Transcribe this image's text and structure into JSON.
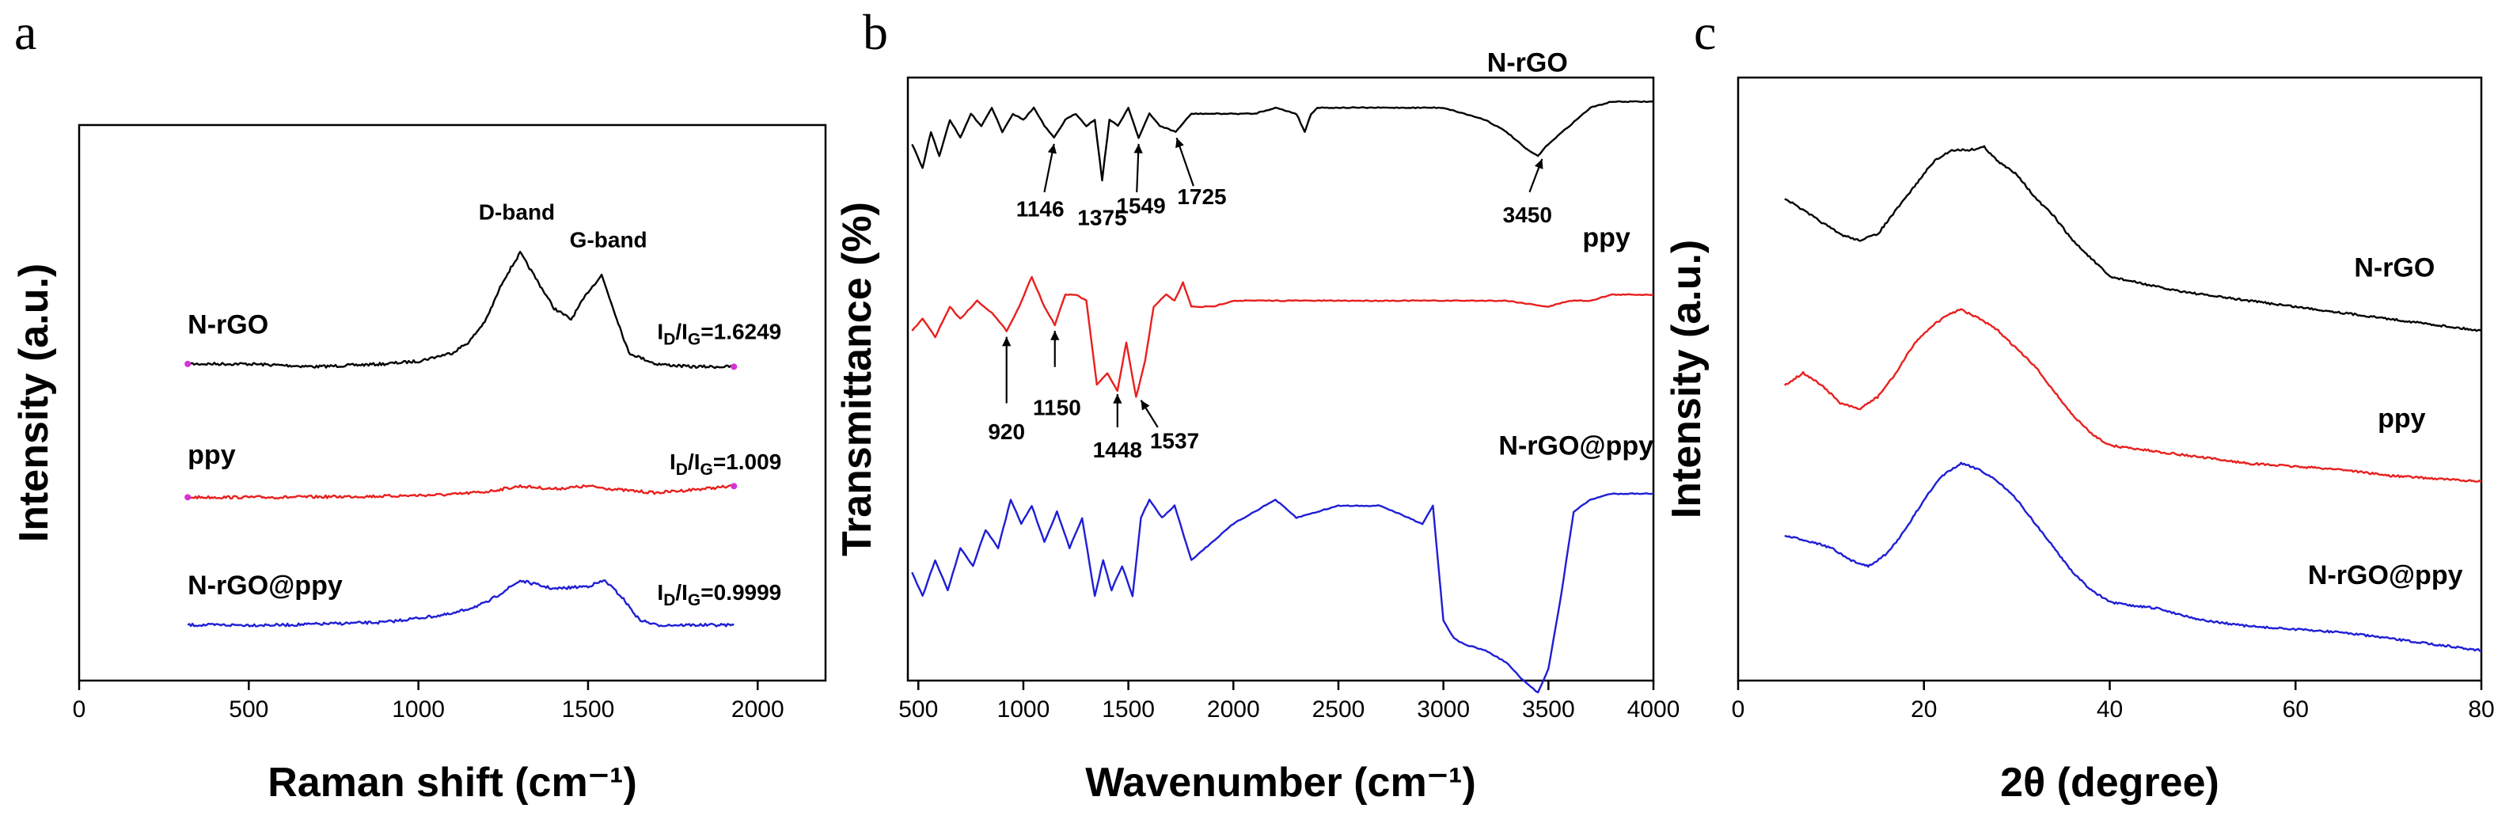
{
  "chart_data": [
    {
      "panel": "a",
      "type": "line",
      "xlabel": "Raman shift (cm⁻¹)",
      "ylabel": "Intensity (a.u.)",
      "xlim": [
        0,
        2200
      ],
      "ylim": [
        0,
        100
      ],
      "xticks": [
        0,
        500,
        1000,
        1500,
        2000
      ],
      "annotations": [
        {
          "text": "D-band",
          "x": 1290,
          "y": 83
        },
        {
          "text": "G-band",
          "x": 1560,
          "y": 78
        }
      ],
      "series": [
        {
          "name": "N-rGO",
          "color": "#000000",
          "ratio_label": "I_D/I_G=1.6249",
          "x": [
            320,
            500,
            700,
            900,
            1000,
            1100,
            1150,
            1200,
            1250,
            1300,
            1350,
            1400,
            1450,
            1500,
            1540,
            1580,
            1620,
            1700,
            1800,
            1930
          ],
          "y": [
            57,
            57,
            56.5,
            57,
            57.5,
            59,
            61,
            65,
            72,
            77,
            72,
            67,
            65,
            70,
            73,
            66,
            59,
            57,
            56.5,
            56.5
          ]
        },
        {
          "name": "ppy",
          "color": "#e8201e",
          "ratio_label": "I_D/I_G=1.009",
          "x": [
            320,
            600,
            900,
            1100,
            1200,
            1300,
            1400,
            1500,
            1600,
            1700,
            1930
          ],
          "y": [
            33,
            33,
            33.2,
            33.5,
            34,
            35,
            34.5,
            35,
            34.3,
            33.8,
            35
          ]
        },
        {
          "name": "N-rGO@ppy",
          "color": "#1f1ed6",
          "ratio_label": "I_D/I_G=0.9999",
          "x": [
            320,
            600,
            900,
            1100,
            1200,
            1300,
            1400,
            1500,
            1550,
            1600,
            1650,
            1700,
            1930
          ],
          "y": [
            10,
            10,
            10.5,
            12,
            14,
            18,
            16.5,
            17,
            18,
            15,
            11,
            10,
            10
          ]
        }
      ]
    },
    {
      "panel": "b",
      "type": "line",
      "xlabel": "Wavenumber (cm⁻¹)",
      "ylabel": "Transmittance (%)",
      "xlim": [
        450,
        4000
      ],
      "ylim": [
        0,
        100
      ],
      "xticks": [
        500,
        1000,
        1500,
        2000,
        2500,
        3000,
        3500,
        4000
      ],
      "series": [
        {
          "name": "N-rGO",
          "color": "#000000",
          "peaks": [
            {
              "text": "1146",
              "x": 1146
            },
            {
              "text": "1375",
              "x": 1375
            },
            {
              "text": "1549",
              "x": 1549
            },
            {
              "text": "1725",
              "x": 1725
            },
            {
              "text": "3450",
              "x": 3450
            }
          ],
          "x": [
            470,
            520,
            560,
            600,
            650,
            700,
            750,
            800,
            850,
            900,
            950,
            1000,
            1050,
            1100,
            1146,
            1200,
            1250,
            1300,
            1340,
            1375,
            1410,
            1450,
            1500,
            1549,
            1600,
            1650,
            1725,
            1800,
            1900,
            2000,
            2100,
            2200,
            2300,
            2340,
            2370,
            2400,
            2500,
            2700,
            2900,
            3000,
            3100,
            3200,
            3300,
            3400,
            3450,
            3500,
            3600,
            3700,
            3800,
            3900,
            4000
          ],
          "y": [
            89,
            85,
            91,
            87,
            93,
            90,
            94,
            92,
            95,
            91,
            94,
            93,
            95,
            92,
            90,
            93,
            94,
            92,
            93,
            83,
            93,
            92,
            95,
            90,
            94,
            92,
            91,
            94,
            94,
            94,
            94,
            95,
            94,
            91,
            94,
            95,
            95,
            95,
            95,
            95,
            94,
            93,
            91,
            88,
            87,
            89,
            92,
            95,
            96,
            96,
            96
          ]
        },
        {
          "name": "ppy",
          "color": "#e8201e",
          "peaks": [
            {
              "text": "920",
              "x": 920
            },
            {
              "text": "1150",
              "x": 1150
            },
            {
              "text": "1448",
              "x": 1448
            },
            {
              "text": "1537",
              "x": 1537
            }
          ],
          "x": [
            470,
            520,
            580,
            650,
            700,
            780,
            850,
            920,
            980,
            1040,
            1100,
            1150,
            1200,
            1250,
            1300,
            1350,
            1400,
            1448,
            1490,
            1537,
            1580,
            1620,
            1680,
            1720,
            1760,
            1800,
            1900,
            2000,
            2200,
            2350,
            2500,
            2800,
            3000,
            3300,
            3500,
            3600,
            3700,
            3800,
            4000
          ],
          "y": [
            58,
            60,
            57,
            62,
            60,
            63,
            61,
            58,
            62,
            67,
            62,
            59,
            64,
            64,
            63,
            49,
            51,
            48,
            56,
            47,
            53,
            62,
            64,
            63,
            66,
            62,
            62,
            63,
            63,
            63,
            63,
            63,
            63,
            63,
            62,
            63,
            63,
            64,
            64
          ]
        },
        {
          "name": "N-rGO@ppy",
          "color": "#1f1ed6",
          "x": [
            470,
            520,
            580,
            640,
            700,
            760,
            820,
            880,
            940,
            990,
            1040,
            1100,
            1160,
            1220,
            1280,
            1340,
            1380,
            1420,
            1470,
            1520,
            1560,
            1600,
            1660,
            1720,
            1800,
            2000,
            2200,
            2300,
            2500,
            2700,
            2900,
            2950,
            3000,
            3050,
            3100,
            3200,
            3300,
            3380,
            3450,
            3500,
            3560,
            3620,
            3700,
            3800,
            4000
          ],
          "y": [
            18,
            14,
            20,
            15,
            22,
            19,
            25,
            22,
            30,
            26,
            29,
            23,
            28,
            22,
            27,
            14,
            20,
            15,
            19,
            14,
            27,
            30,
            27,
            29,
            20,
            26,
            30,
            27,
            29,
            29,
            26,
            29,
            10,
            7,
            6,
            5,
            3,
            0,
            -2,
            2,
            14,
            28,
            30,
            31,
            31
          ]
        }
      ]
    },
    {
      "panel": "c",
      "type": "line",
      "xlabel": "2θ (degree)",
      "ylabel": "Intensity (a.u.)",
      "xlim": [
        0,
        80
      ],
      "ylim": [
        0,
        100
      ],
      "xticks": [
        0,
        20,
        40,
        60,
        80
      ],
      "series": [
        {
          "name": "N-rGO",
          "color": "#000000",
          "x": [
            5,
            8,
            11,
            13,
            15,
            17,
            19,
            21,
            23,
            25,
            26.5,
            28,
            30,
            32,
            34,
            36,
            38,
            40,
            43,
            46,
            50,
            55,
            60,
            65,
            70,
            75,
            80
          ],
          "y": [
            80,
            77,
            74,
            73,
            74,
            78,
            82,
            86,
            88,
            88,
            88.5,
            86,
            84,
            80,
            77,
            73,
            70,
            67,
            66,
            65,
            64,
            63,
            62,
            61,
            60,
            59,
            58
          ]
        },
        {
          "name": "ppy",
          "color": "#e8201e",
          "x": [
            5,
            7,
            9,
            11,
            13,
            15,
            17,
            19,
            21,
            23,
            24,
            26,
            28,
            30,
            32,
            34,
            36,
            38,
            40,
            45,
            50,
            55,
            60,
            65,
            70,
            75,
            80
          ],
          "y": [
            49,
            51,
            49,
            46,
            45,
            47,
            51,
            56,
            59,
            61,
            61.5,
            60,
            58,
            55,
            52,
            48,
            44,
            41,
            39,
            38,
            37,
            36,
            35.5,
            35,
            34,
            33.5,
            33
          ]
        },
        {
          "name": "N-rGO@ppy",
          "color": "#1f1ed6",
          "x": [
            5,
            8,
            10,
            12,
            14,
            16,
            18,
            20,
            22,
            24,
            26,
            28,
            30,
            32,
            34,
            36,
            38,
            40,
            42,
            45,
            50,
            55,
            60,
            65,
            70,
            75,
            80
          ],
          "y": [
            24,
            23,
            22,
            20,
            19,
            21,
            25,
            30,
            34,
            36,
            35,
            33,
            30,
            26,
            22,
            18,
            15,
            13,
            12.5,
            12,
            10,
            9,
            8.5,
            8,
            7,
            6,
            5
          ]
        }
      ]
    }
  ],
  "panel_labels": [
    "a",
    "b",
    "c"
  ]
}
